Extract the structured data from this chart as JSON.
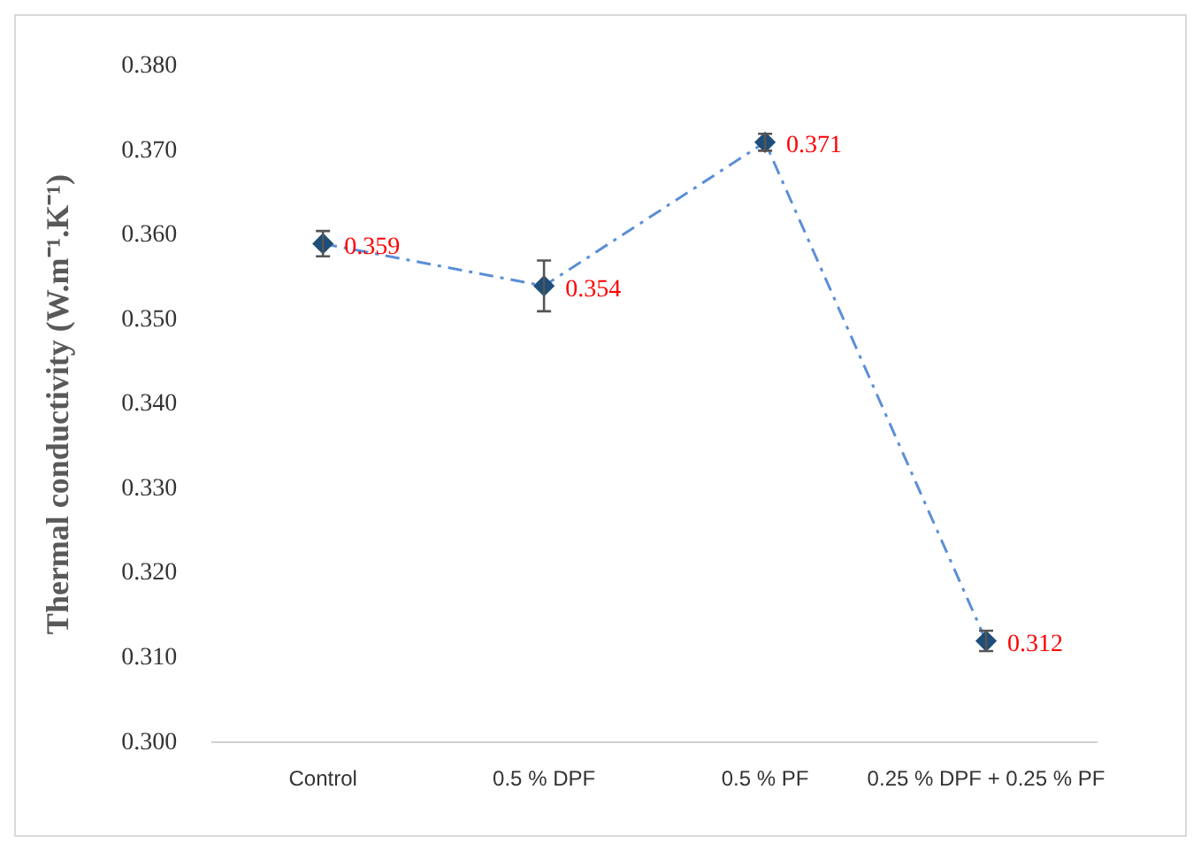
{
  "chart_data": {
    "type": "line",
    "ylabel": "Thermal conductivity (W.m⁻¹.K⁻¹)",
    "categories": [
      "Control",
      "0.5 % DPF",
      "0.5 % PF",
      "0.25 % DPF + 0.25 % PF"
    ],
    "series": [
      {
        "color": "#5b8fd6",
        "values": [
          0.359,
          0.354,
          0.371,
          0.312
        ],
        "errors": [
          0.0015,
          0.003,
          0.001,
          0.0012
        ]
      }
    ],
    "ylim": [
      0.3,
      0.38
    ],
    "yticks": [
      {
        "value": 0.3,
        "label": "0.300"
      },
      {
        "value": 0.31,
        "label": "0.310"
      },
      {
        "value": 0.32,
        "label": "0.320"
      },
      {
        "value": 0.33,
        "label": "0.330"
      },
      {
        "value": 0.34,
        "label": "0.340"
      },
      {
        "value": 0.35,
        "label": "0.350"
      },
      {
        "value": 0.36,
        "label": "0.360"
      },
      {
        "value": 0.37,
        "label": "0.370"
      },
      {
        "value": 0.38,
        "label": "0.380"
      }
    ],
    "grid": false,
    "legend": false,
    "marker": "diamond",
    "line_style": "dashed",
    "data_labels": true
  }
}
